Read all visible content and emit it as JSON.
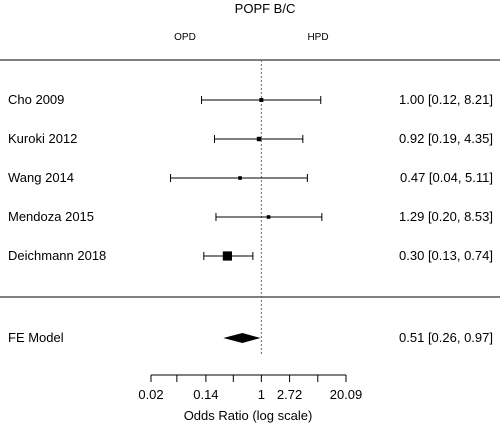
{
  "chart_data": {
    "type": "forest",
    "title": "POPF B/C",
    "left_group_label": "OPD",
    "right_group_label": "HPD",
    "xlabel": "Odds Ratio (log scale)",
    "x_scale": "log",
    "xlim": [
      0.02,
      20.09
    ],
    "reference_line": 1,
    "ticks": [
      {
        "value": 0.02,
        "label": "0.02"
      },
      {
        "value": 0.05,
        "label": ""
      },
      {
        "value": 0.14,
        "label": "0.14"
      },
      {
        "value": 0.37,
        "label": ""
      },
      {
        "value": 1,
        "label": "1"
      },
      {
        "value": 2.72,
        "label": "2.72"
      },
      {
        "value": 7.39,
        "label": ""
      },
      {
        "value": 20.09,
        "label": "20.09"
      }
    ],
    "studies": [
      {
        "name": "Cho 2009",
        "or": 1.0,
        "lower": 0.12,
        "upper": 8.21,
        "text": "1.00 [0.12, 8.21]",
        "weight": 0.5
      },
      {
        "name": "Kuroki 2012",
        "or": 0.92,
        "lower": 0.19,
        "upper": 4.35,
        "text": "0.92 [0.19, 4.35]",
        "weight": 0.6
      },
      {
        "name": "Wang 2014",
        "or": 0.47,
        "lower": 0.04,
        "upper": 5.11,
        "text": "0.47 [0.04, 5.11]",
        "weight": 0.4
      },
      {
        "name": "Mendoza 2015",
        "or": 1.29,
        "lower": 0.2,
        "upper": 8.53,
        "text": "1.29 [0.20, 8.53]",
        "weight": 0.4
      },
      {
        "name": "Deichmann 2018",
        "or": 0.3,
        "lower": 0.13,
        "upper": 0.74,
        "text": "0.30 [0.13, 0.74]",
        "weight": 1.8
      }
    ],
    "summary": {
      "name": "FE Model",
      "or": 0.51,
      "lower": 0.26,
      "upper": 0.97,
      "text": "0.51 [0.26, 0.97]"
    }
  }
}
